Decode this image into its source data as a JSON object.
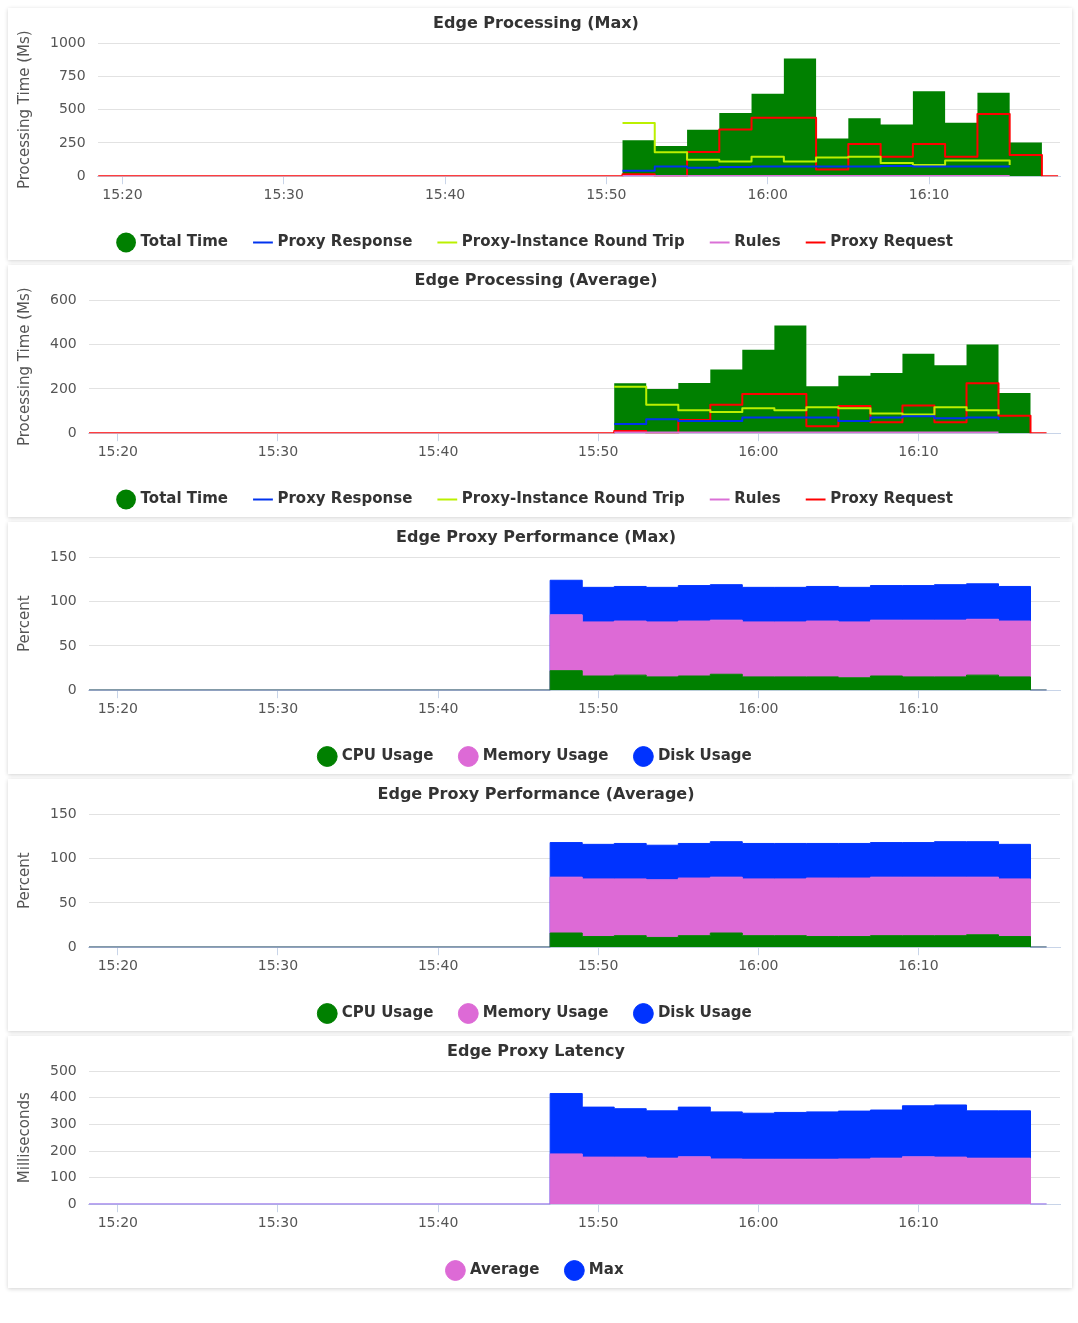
{
  "chart_data": [
    {
      "type": "step",
      "title": "Edge Processing (Max)",
      "ylabel": "Processing Time (Ms)",
      "grid": "y",
      "legend": "bottom",
      "x": [
        15.3083,
        15.85,
        15.8833,
        15.9167,
        15.95,
        15.9833,
        16.0167,
        16.05,
        16.0833,
        16.1167,
        16.15,
        16.1833,
        16.2167,
        16.25,
        16.2833,
        16.3
      ],
      "xlim": [
        15.3077,
        16.302
      ],
      "xticks": [
        {
          "value": 15.3333,
          "label": "15:20"
        },
        {
          "value": 15.5,
          "label": "15:30"
        },
        {
          "value": 15.6667,
          "label": "15:40"
        },
        {
          "value": 15.8333,
          "label": "15:50"
        },
        {
          "value": 16,
          "label": "16:00"
        },
        {
          "value": 16.1667,
          "label": "16:10"
        }
      ],
      "ylim": [
        0,
        1000
      ],
      "yticks": [
        0,
        250,
        500,
        750,
        1000
      ],
      "series": [
        {
          "name": "Total Time",
          "type": "area",
          "color": "#008000",
          "values": [
            0,
            270,
            228,
            350,
            475,
            620,
            885,
            283,
            435,
            388,
            638,
            402,
            627,
            253,
            0,
            0
          ]
        },
        {
          "name": "Proxy Response",
          "color": "#0033ee",
          "values": [
            null,
            41,
            72,
            63,
            69,
            72,
            72,
            72,
            72,
            77,
            72,
            72,
            72,
            72,
            null,
            null
          ]
        },
        {
          "name": "Proxy-Instance Round Trip",
          "color": "#bbf000",
          "values": [
            null,
            400,
            180,
            124,
            110,
            146,
            110,
            140,
            146,
            99,
            85,
            118,
            118,
            85,
            null,
            null
          ]
        },
        {
          "name": "Rules",
          "color": "#da70d6",
          "values": [
            null,
            2,
            2,
            2,
            2,
            2,
            2,
            2,
            2,
            2,
            2,
            2,
            2,
            2,
            null,
            null
          ]
        },
        {
          "name": "Proxy Request",
          "color": "#ff0000",
          "values": [
            0,
            14,
            0,
            182,
            352,
            440,
            440,
            50,
            242,
            146,
            242,
            146,
            468,
            160,
            0,
            0
          ]
        }
      ]
    },
    {
      "type": "step",
      "title": "Edge Processing (Average)",
      "ylabel": "Processing Time (Ms)",
      "grid": "y",
      "legend": "bottom",
      "x": [
        15.3033,
        15.85,
        15.8833,
        15.9167,
        15.95,
        15.9833,
        16.0167,
        16.05,
        16.0833,
        16.1167,
        16.15,
        16.1833,
        16.2167,
        16.25,
        16.2833,
        16.3
      ],
      "xlim": [
        15.303,
        16.314
      ],
      "xticks": [
        {
          "value": 15.3333,
          "label": "15:20"
        },
        {
          "value": 15.5,
          "label": "15:30"
        },
        {
          "value": 15.6667,
          "label": "15:40"
        },
        {
          "value": 15.8333,
          "label": "15:50"
        },
        {
          "value": 16,
          "label": "16:00"
        },
        {
          "value": 16.1667,
          "label": "16:10"
        }
      ],
      "ylim": [
        0,
        600
      ],
      "yticks": [
        0,
        200,
        400,
        600
      ],
      "series": [
        {
          "name": "Total Time",
          "type": "area",
          "color": "#008000",
          "values": [
            0,
            225,
            199,
            227,
            287,
            376,
            486,
            212,
            259,
            272,
            358,
            306,
            400,
            181,
            0,
            0
          ]
        },
        {
          "name": "Proxy Response",
          "color": "#0033ee",
          "values": [
            null,
            41,
            63,
            55,
            55,
            71,
            71,
            71,
            55,
            71,
            76,
            68,
            71,
            60,
            null,
            null
          ]
        },
        {
          "name": "Proxy-Instance Round Trip",
          "color": "#bbf000",
          "values": [
            null,
            209,
            128,
            104,
            96,
            113,
            104,
            117,
            112,
            89,
            84,
            117,
            104,
            84,
            null,
            null
          ]
        },
        {
          "name": "Rules",
          "color": "#da70d6",
          "values": [
            null,
            3,
            3,
            3,
            3,
            3,
            3,
            3,
            3,
            3,
            3,
            3,
            3,
            3,
            null,
            null
          ]
        },
        {
          "name": "Proxy Request",
          "color": "#ff0000",
          "values": [
            0,
            10,
            0,
            60,
            128,
            177,
            177,
            31,
            123,
            49,
            125,
            49,
            225,
            79,
            0,
            0
          ]
        }
      ]
    },
    {
      "type": "area",
      "stacked": true,
      "title": "Edge Proxy Performance (Max)",
      "ylabel": "Percent",
      "grid": "y",
      "legend": "bottom",
      "x": [
        15.3033,
        15.7833,
        15.8167,
        15.85,
        15.8833,
        15.9167,
        15.95,
        15.9833,
        16.0167,
        16.05,
        16.0833,
        16.1167,
        16.15,
        16.1833,
        16.2167,
        16.25,
        16.2833,
        16.3
      ],
      "xlim": [
        15.303,
        16.314
      ],
      "xticks": [
        {
          "value": 15.3333,
          "label": "15:20"
        },
        {
          "value": 15.5,
          "label": "15:30"
        },
        {
          "value": 15.6667,
          "label": "15:40"
        },
        {
          "value": 15.8333,
          "label": "15:50"
        },
        {
          "value": 16,
          "label": "16:00"
        },
        {
          "value": 16.1667,
          "label": "16:10"
        }
      ],
      "ylim": [
        0,
        150
      ],
      "yticks": [
        0,
        50,
        100,
        150
      ],
      "series": [
        {
          "name": "CPU Usage",
          "color": "#008000",
          "values": [
            0,
            22,
            16,
            17,
            15,
            16,
            18,
            15,
            15,
            15,
            14,
            16,
            15,
            15,
            17,
            15,
            0,
            0
          ]
        },
        {
          "name": "Memory Usage",
          "color": "#dd6ad6",
          "values": [
            0,
            63,
            61,
            61,
            62,
            62,
            61,
            62,
            62,
            63,
            63,
            63,
            64,
            64,
            63,
            63,
            0,
            0
          ]
        },
        {
          "name": "Disk Usage",
          "color": "#0033ff",
          "values": [
            0,
            39,
            39,
            39,
            39,
            40,
            40,
            39,
            39,
            39,
            39,
            39,
            39,
            40,
            40,
            39,
            0,
            0
          ]
        }
      ]
    },
    {
      "type": "area",
      "stacked": true,
      "title": "Edge Proxy Performance (Average)",
      "ylabel": "Percent",
      "grid": "y",
      "legend": "bottom",
      "x": [
        15.3033,
        15.7833,
        15.8167,
        15.85,
        15.8833,
        15.9167,
        15.95,
        15.9833,
        16.0167,
        16.05,
        16.0833,
        16.1167,
        16.15,
        16.1833,
        16.2167,
        16.25,
        16.2833,
        16.3
      ],
      "xlim": [
        15.303,
        16.314
      ],
      "xticks": [
        {
          "value": 15.3333,
          "label": "15:20"
        },
        {
          "value": 15.5,
          "label": "15:30"
        },
        {
          "value": 15.6667,
          "label": "15:40"
        },
        {
          "value": 15.8333,
          "label": "15:50"
        },
        {
          "value": 16,
          "label": "16:00"
        },
        {
          "value": 16.1667,
          "label": "16:10"
        }
      ],
      "ylim": [
        0,
        150
      ],
      "yticks": [
        0,
        50,
        100,
        150
      ],
      "series": [
        {
          "name": "CPU Usage",
          "color": "#008000",
          "values": [
            0,
            16,
            12,
            13,
            11,
            13,
            16,
            13,
            13,
            12,
            12,
            13,
            13,
            13,
            14,
            12,
            0,
            0
          ]
        },
        {
          "name": "Memory Usage",
          "color": "#dd6ad6",
          "values": [
            0,
            63,
            65,
            64,
            65,
            65,
            63,
            64,
            64,
            66,
            66,
            66,
            66,
            66,
            65,
            65,
            0,
            0
          ]
        },
        {
          "name": "Disk Usage",
          "color": "#0033ff",
          "values": [
            0,
            39,
            39,
            40,
            39,
            39,
            40,
            40,
            40,
            39,
            39,
            39,
            39,
            40,
            40,
            39,
            0,
            0
          ]
        }
      ]
    },
    {
      "type": "area",
      "stacked": true,
      "title": "Edge Proxy Latency",
      "ylabel": "Milliseconds",
      "grid": "y",
      "legend": "bottom",
      "x": [
        15.3033,
        15.7833,
        15.8167,
        15.85,
        15.8833,
        15.9167,
        15.95,
        15.9833,
        16.0167,
        16.05,
        16.0833,
        16.1167,
        16.15,
        16.1833,
        16.2167,
        16.25,
        16.2833,
        16.3
      ],
      "xlim": [
        15.303,
        16.314
      ],
      "xticks": [
        {
          "value": 15.3333,
          "label": "15:20"
        },
        {
          "value": 15.5,
          "label": "15:30"
        },
        {
          "value": 15.6667,
          "label": "15:40"
        },
        {
          "value": 15.8333,
          "label": "15:50"
        },
        {
          "value": 16,
          "label": "16:00"
        },
        {
          "value": 16.1667,
          "label": "16:10"
        }
      ],
      "ylim": [
        0,
        500
      ],
      "yticks": [
        0,
        100,
        200,
        300,
        400,
        500
      ],
      "series": [
        {
          "name": "Average",
          "color": "#dd6ad6",
          "values": [
            0,
            189,
            177,
            177,
            173,
            178,
            170,
            169,
            169,
            169,
            170,
            173,
            178,
            177,
            173,
            173,
            0,
            0
          ]
        },
        {
          "name": "Max",
          "color": "#0033ff",
          "values": [
            0,
            227,
            188,
            182,
            178,
            187,
            177,
            173,
            176,
            178,
            180,
            181,
            192,
            196,
            178,
            178,
            0,
            0
          ]
        }
      ]
    }
  ]
}
